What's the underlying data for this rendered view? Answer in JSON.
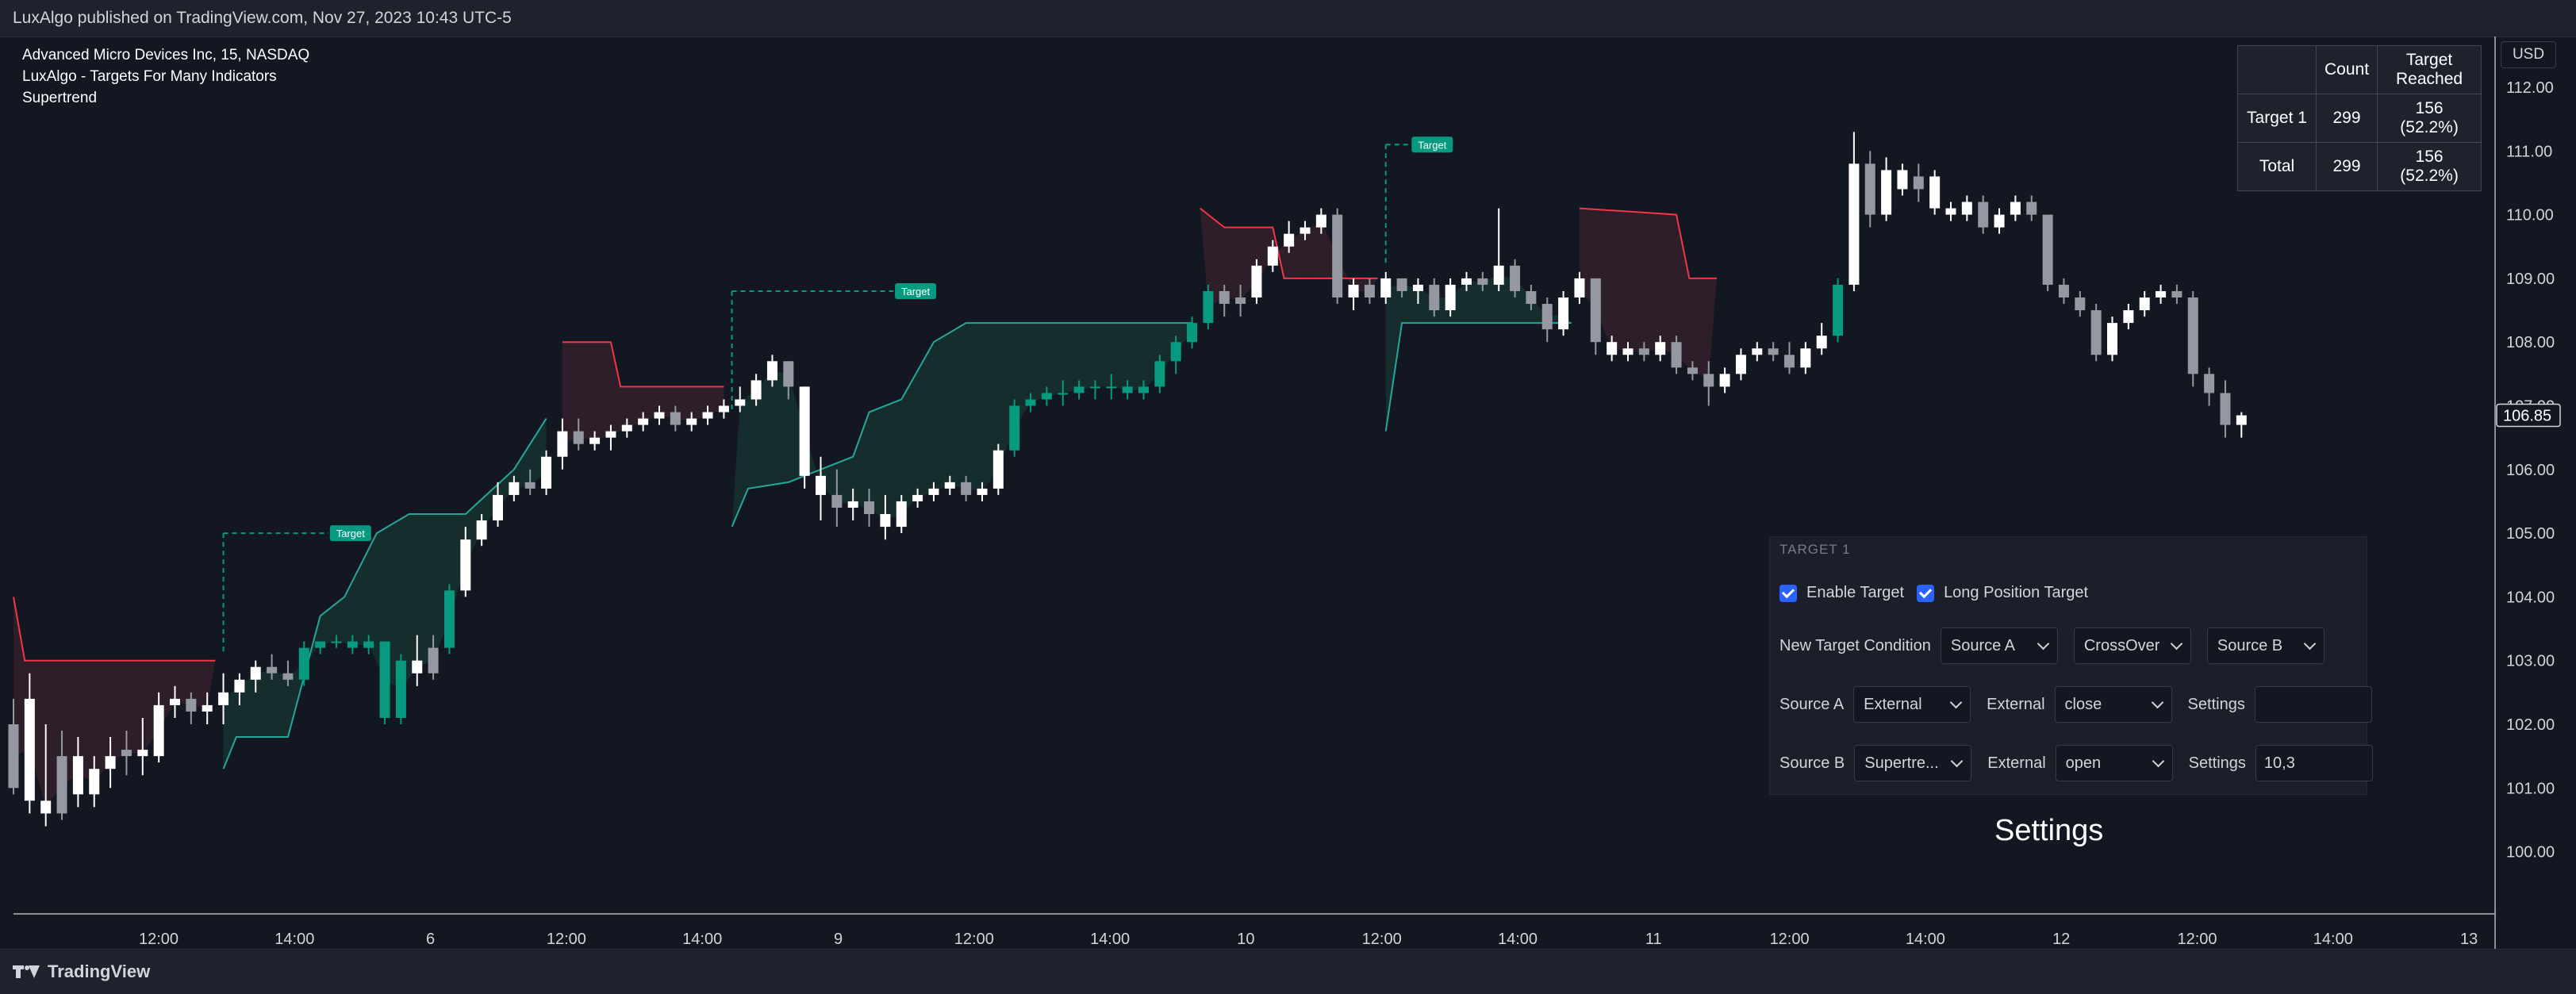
{
  "header": {
    "published_by": "LuxAlgo published on TradingView.com, Nov 27, 2023 10:43 UTC-5"
  },
  "legend": {
    "symbol": "Advanced Micro Devices Inc, 15, NASDAQ",
    "indicator": "LuxAlgo - Targets For Many Indicators",
    "sub_indicator": "Supertrend"
  },
  "currency_button": "USD",
  "stats_table": {
    "headers": [
      "",
      "Count",
      "Target Reached"
    ],
    "rows": [
      {
        "label": "Target 1",
        "count": "299",
        "reached": "156 (52.2%)"
      },
      {
        "label": "Total",
        "count": "299",
        "reached": "156 (52.2%)"
      }
    ]
  },
  "settings_panel": {
    "title": "TARGET 1",
    "enable_target_label": "Enable Target",
    "long_position_label": "Long Position Target",
    "new_condition_label": "New Target Condition",
    "new_condition": {
      "source_a": "Source A",
      "operator": "CrossOver",
      "source_b": "Source B"
    },
    "source_a": {
      "label": "Source A",
      "type": "External",
      "external_label": "External",
      "external_value": "close",
      "settings_label": "Settings",
      "settings_value": ""
    },
    "source_b": {
      "label": "Source B",
      "type": "Supertre...",
      "external_label": "External",
      "external_value": "open",
      "settings_label": "Settings",
      "settings_value": "10,3"
    }
  },
  "caption": "Settings",
  "footer": {
    "brand": "TradingView"
  },
  "chart_data": {
    "type": "candlestick",
    "title": "Advanced Micro Devices Inc, 15, NASDAQ",
    "ylim": [
      99.0,
      113.0
    ],
    "y_ticks": [
      "112.00",
      "111.00",
      "110.00",
      "109.00",
      "108.00",
      "107.00",
      "106.00",
      "105.00",
      "104.00",
      "103.00",
      "102.00",
      "101.00",
      "100.00"
    ],
    "x_ticks": [
      "12:00",
      "14:00",
      "6",
      "12:00",
      "14:00",
      "9",
      "12:00",
      "14:00",
      "10",
      "12:00",
      "14:00",
      "11",
      "12:00",
      "14:00",
      "12",
      "12:00",
      "14:00",
      "13"
    ],
    "last_price": "106.85",
    "target_label": "Target",
    "colors": {
      "up": "#089981",
      "down": "#ffffff",
      "grey": "#9598a1",
      "bull_fill": "#16322f",
      "bear_fill": "#34202a",
      "bull_line": "#26a69a",
      "bear_line": "#f23645"
    },
    "supertrend": [
      {
        "dir": "bear",
        "pts": [
          [
            0,
            104.0
          ],
          [
            0.7,
            103.0
          ],
          [
            12.5,
            103.0
          ]
        ]
      },
      {
        "dir": "bull",
        "pts": [
          [
            13,
            101.3
          ],
          [
            13.8,
            101.8
          ],
          [
            17,
            101.8
          ],
          [
            19,
            103.7
          ],
          [
            20.5,
            104.0
          ],
          [
            22.5,
            105.0
          ],
          [
            24.5,
            105.3
          ],
          [
            28,
            105.3
          ],
          [
            31,
            106.0
          ],
          [
            33,
            106.8
          ]
        ]
      },
      {
        "dir": "bear",
        "pts": [
          [
            34,
            108.0
          ],
          [
            37,
            108.0
          ],
          [
            37.6,
            107.3
          ],
          [
            44,
            107.3
          ]
        ]
      },
      {
        "dir": "bull",
        "pts": [
          [
            44.5,
            105.1
          ],
          [
            45.5,
            105.7
          ],
          [
            48,
            105.8
          ],
          [
            52,
            106.2
          ],
          [
            53,
            106.9
          ],
          [
            55,
            107.1
          ],
          [
            57,
            108.0
          ],
          [
            59,
            108.3
          ],
          [
            73,
            108.3
          ]
        ]
      },
      {
        "dir": "bear",
        "pts": [
          [
            73.5,
            110.1
          ],
          [
            75,
            109.8
          ],
          [
            78,
            109.8
          ],
          [
            78.7,
            109.0
          ],
          [
            84.5,
            109.0
          ]
        ]
      },
      {
        "dir": "bull",
        "pts": [
          [
            85,
            106.6
          ],
          [
            86,
            108.3
          ],
          [
            96.5,
            108.3
          ]
        ]
      },
      {
        "dir": "bear",
        "pts": [
          [
            97,
            110.1
          ],
          [
            103,
            110.0
          ],
          [
            103.8,
            109.0
          ],
          [
            105.5,
            109.0
          ]
        ]
      }
    ],
    "targets": [
      {
        "x0": 13,
        "x1": 19.5,
        "y": 105.0
      },
      {
        "x0": 44.5,
        "x1": 54.5,
        "y": 108.8
      },
      {
        "x0": 85,
        "x1": 86.5,
        "y": 111.1
      }
    ],
    "candles": [
      [
        102.0,
        102.4,
        101.0,
        100.9,
        "grey"
      ],
      [
        102.4,
        102.8,
        100.8,
        100.6,
        "down"
      ],
      [
        100.8,
        102.0,
        100.6,
        100.4,
        "down"
      ],
      [
        100.6,
        101.9,
        101.5,
        100.5,
        "grey"
      ],
      [
        101.5,
        101.8,
        100.9,
        100.7,
        "down"
      ],
      [
        100.9,
        101.5,
        101.3,
        100.7,
        "down"
      ],
      [
        101.3,
        101.8,
        101.5,
        101.0,
        "down"
      ],
      [
        101.5,
        101.9,
        101.6,
        101.2,
        "grey"
      ],
      [
        101.6,
        102.1,
        101.5,
        101.2,
        "down"
      ],
      [
        101.5,
        102.5,
        102.3,
        101.4,
        "down"
      ],
      [
        102.3,
        102.6,
        102.4,
        102.1,
        "down"
      ],
      [
        102.4,
        102.5,
        102.2,
        102.0,
        "grey"
      ],
      [
        102.2,
        102.5,
        102.3,
        102.0,
        "down"
      ],
      [
        102.3,
        102.8,
        102.5,
        102.0,
        "down"
      ],
      [
        102.5,
        102.8,
        102.7,
        102.3,
        "down"
      ],
      [
        102.7,
        103.0,
        102.9,
        102.5,
        "down"
      ],
      [
        102.9,
        103.1,
        102.8,
        102.7,
        "grey"
      ],
      [
        102.8,
        103.0,
        102.7,
        102.6,
        "grey"
      ],
      [
        102.7,
        103.3,
        103.2,
        102.6,
        "up"
      ],
      [
        103.2,
        103.3,
        103.3,
        103.1,
        "up"
      ],
      [
        103.3,
        103.4,
        103.3,
        103.2,
        "up"
      ],
      [
        103.3,
        103.4,
        103.2,
        103.1,
        "up"
      ],
      [
        103.2,
        103.4,
        103.3,
        103.1,
        "up"
      ],
      [
        103.3,
        103.3,
        102.1,
        102.0,
        "up"
      ],
      [
        102.1,
        103.1,
        103.0,
        102.0,
        "up"
      ],
      [
        103.0,
        103.4,
        102.8,
        102.6,
        "down"
      ],
      [
        102.8,
        103.4,
        103.2,
        102.7,
        "grey"
      ],
      [
        103.2,
        104.2,
        104.1,
        103.1,
        "up"
      ],
      [
        104.1,
        105.1,
        104.9,
        104.0,
        "down"
      ],
      [
        104.9,
        105.3,
        105.2,
        104.8,
        "down"
      ],
      [
        105.2,
        105.8,
        105.6,
        105.1,
        "down"
      ],
      [
        105.6,
        105.9,
        105.8,
        105.5,
        "down"
      ],
      [
        105.8,
        106.0,
        105.7,
        105.6,
        "grey"
      ],
      [
        105.7,
        106.3,
        106.2,
        105.6,
        "down"
      ],
      [
        106.2,
        106.8,
        106.6,
        106.0,
        "down"
      ],
      [
        106.6,
        106.8,
        106.4,
        106.3,
        "grey"
      ],
      [
        106.4,
        106.6,
        106.5,
        106.3,
        "down"
      ],
      [
        106.5,
        106.7,
        106.6,
        106.3,
        "down"
      ],
      [
        106.6,
        106.8,
        106.7,
        106.5,
        "down"
      ],
      [
        106.7,
        106.9,
        106.8,
        106.6,
        "down"
      ],
      [
        106.8,
        107.0,
        106.9,
        106.7,
        "down"
      ],
      [
        106.9,
        107.0,
        106.7,
        106.6,
        "grey"
      ],
      [
        106.7,
        106.9,
        106.8,
        106.6,
        "down"
      ],
      [
        106.8,
        107.0,
        106.9,
        106.7,
        "down"
      ],
      [
        106.9,
        107.1,
        107.0,
        106.8,
        "down"
      ],
      [
        107.0,
        107.3,
        107.1,
        106.9,
        "down"
      ],
      [
        107.1,
        107.5,
        107.4,
        107.0,
        "down"
      ],
      [
        107.4,
        107.8,
        107.7,
        107.3,
        "down"
      ],
      [
        107.7,
        107.7,
        107.3,
        107.1,
        "grey"
      ],
      [
        107.3,
        107.3,
        105.9,
        105.7,
        "down"
      ],
      [
        105.9,
        106.2,
        105.6,
        105.2,
        "down"
      ],
      [
        105.6,
        106.0,
        105.4,
        105.1,
        "grey"
      ],
      [
        105.4,
        105.7,
        105.5,
        105.2,
        "down"
      ],
      [
        105.5,
        105.7,
        105.3,
        105.1,
        "grey"
      ],
      [
        105.3,
        105.6,
        105.1,
        104.9,
        "down"
      ],
      [
        105.1,
        105.6,
        105.5,
        105.0,
        "down"
      ],
      [
        105.5,
        105.7,
        105.6,
        105.4,
        "down"
      ],
      [
        105.6,
        105.8,
        105.7,
        105.5,
        "down"
      ],
      [
        105.7,
        105.9,
        105.8,
        105.6,
        "down"
      ],
      [
        105.8,
        105.9,
        105.6,
        105.5,
        "grey"
      ],
      [
        105.6,
        105.8,
        105.7,
        105.5,
        "down"
      ],
      [
        105.7,
        106.4,
        106.3,
        105.6,
        "down"
      ],
      [
        106.3,
        107.1,
        107.0,
        106.2,
        "up"
      ],
      [
        107.0,
        107.2,
        107.1,
        106.9,
        "up"
      ],
      [
        107.1,
        107.3,
        107.2,
        107.0,
        "up"
      ],
      [
        107.2,
        107.4,
        107.2,
        107.0,
        "up"
      ],
      [
        107.2,
        107.4,
        107.3,
        107.1,
        "up"
      ],
      [
        107.3,
        107.4,
        107.3,
        107.1,
        "up"
      ],
      [
        107.3,
        107.5,
        107.3,
        107.1,
        "up"
      ],
      [
        107.3,
        107.4,
        107.2,
        107.1,
        "up"
      ],
      [
        107.2,
        107.4,
        107.3,
        107.1,
        "up"
      ],
      [
        107.3,
        107.8,
        107.7,
        107.2,
        "up"
      ],
      [
        107.7,
        108.1,
        108.0,
        107.5,
        "up"
      ],
      [
        108.0,
        108.4,
        108.3,
        107.9,
        "up"
      ],
      [
        108.3,
        108.9,
        108.8,
        108.2,
        "up"
      ],
      [
        108.8,
        108.9,
        108.6,
        108.4,
        "grey"
      ],
      [
        108.6,
        108.9,
        108.7,
        108.4,
        "grey"
      ],
      [
        108.7,
        109.3,
        109.2,
        108.6,
        "down"
      ],
      [
        109.2,
        109.6,
        109.5,
        109.1,
        "down"
      ],
      [
        109.5,
        109.9,
        109.7,
        109.4,
        "down"
      ],
      [
        109.7,
        109.9,
        109.8,
        109.6,
        "down"
      ],
      [
        109.8,
        110.1,
        110.0,
        109.7,
        "down"
      ],
      [
        110.0,
        110.1,
        108.7,
        108.6,
        "grey"
      ],
      [
        108.7,
        109.0,
        108.9,
        108.5,
        "down"
      ],
      [
        108.9,
        109.0,
        108.7,
        108.6,
        "grey"
      ],
      [
        108.7,
        109.1,
        109.0,
        108.6,
        "down"
      ],
      [
        109.0,
        109.0,
        108.8,
        108.7,
        "grey"
      ],
      [
        108.8,
        109.0,
        108.9,
        108.6,
        "down"
      ],
      [
        108.9,
        109.0,
        108.5,
        108.4,
        "grey"
      ],
      [
        108.5,
        109.0,
        108.9,
        108.4,
        "down"
      ],
      [
        108.9,
        109.1,
        109.0,
        108.8,
        "down"
      ],
      [
        109.0,
        109.1,
        108.9,
        108.8,
        "grey"
      ],
      [
        108.9,
        110.1,
        109.2,
        108.8,
        "down"
      ],
      [
        109.2,
        109.3,
        108.8,
        108.7,
        "grey"
      ],
      [
        108.8,
        108.9,
        108.6,
        108.5,
        "grey"
      ],
      [
        108.6,
        108.7,
        108.2,
        108.0,
        "grey"
      ],
      [
        108.2,
        108.8,
        108.7,
        108.1,
        "down"
      ],
      [
        108.7,
        109.1,
        109.0,
        108.6,
        "down"
      ],
      [
        109.0,
        109.0,
        108.0,
        107.8,
        "grey"
      ],
      [
        108.0,
        108.1,
        107.8,
        107.7,
        "down"
      ],
      [
        107.8,
        108.0,
        107.9,
        107.7,
        "down"
      ],
      [
        107.9,
        108.0,
        107.8,
        107.7,
        "grey"
      ],
      [
        107.8,
        108.1,
        108.0,
        107.7,
        "down"
      ],
      [
        108.0,
        108.1,
        107.6,
        107.5,
        "grey"
      ],
      [
        107.6,
        107.7,
        107.5,
        107.4,
        "grey"
      ],
      [
        107.5,
        107.7,
        107.3,
        107.0,
        "grey"
      ],
      [
        107.3,
        107.6,
        107.5,
        107.2,
        "down"
      ],
      [
        107.5,
        107.9,
        107.8,
        107.4,
        "down"
      ],
      [
        107.8,
        108.0,
        107.9,
        107.7,
        "down"
      ],
      [
        107.9,
        108.0,
        107.8,
        107.7,
        "grey"
      ],
      [
        107.8,
        108.0,
        107.6,
        107.5,
        "grey"
      ],
      [
        107.6,
        108.0,
        107.9,
        107.5,
        "down"
      ],
      [
        107.9,
        108.3,
        108.1,
        107.8,
        "down"
      ],
      [
        108.1,
        109.0,
        108.9,
        108.0,
        "up"
      ],
      [
        108.9,
        111.3,
        110.8,
        108.8,
        "down"
      ],
      [
        110.8,
        111.0,
        110.0,
        109.8,
        "grey"
      ],
      [
        110.0,
        110.9,
        110.7,
        109.9,
        "down"
      ],
      [
        110.7,
        110.8,
        110.4,
        110.3,
        "down"
      ],
      [
        110.4,
        110.8,
        110.6,
        110.2,
        "grey"
      ],
      [
        110.6,
        110.7,
        110.1,
        110.0,
        "down"
      ],
      [
        110.1,
        110.2,
        110.0,
        109.9,
        "down"
      ],
      [
        110.0,
        110.3,
        110.2,
        109.9,
        "down"
      ],
      [
        110.2,
        110.3,
        109.8,
        109.7,
        "grey"
      ],
      [
        109.8,
        110.1,
        110.0,
        109.7,
        "down"
      ],
      [
        110.0,
        110.3,
        110.2,
        109.9,
        "down"
      ],
      [
        110.2,
        110.3,
        110.0,
        109.9,
        "grey"
      ],
      [
        110.0,
        110.0,
        108.9,
        108.8,
        "grey"
      ],
      [
        108.9,
        109.0,
        108.7,
        108.6,
        "grey"
      ],
      [
        108.7,
        108.8,
        108.5,
        108.4,
        "grey"
      ],
      [
        108.5,
        108.6,
        107.8,
        107.7,
        "grey"
      ],
      [
        107.8,
        108.4,
        108.3,
        107.7,
        "down"
      ],
      [
        108.3,
        108.6,
        108.5,
        108.2,
        "down"
      ],
      [
        108.5,
        108.8,
        108.7,
        108.4,
        "down"
      ],
      [
        108.7,
        108.9,
        108.8,
        108.6,
        "down"
      ],
      [
        108.8,
        108.9,
        108.7,
        108.6,
        "grey"
      ],
      [
        108.7,
        108.8,
        107.5,
        107.3,
        "grey"
      ],
      [
        107.5,
        107.6,
        107.2,
        107.0,
        "grey"
      ],
      [
        107.2,
        107.4,
        106.7,
        106.5,
        "grey"
      ],
      [
        106.7,
        106.9,
        106.85,
        106.5,
        "down"
      ]
    ]
  }
}
